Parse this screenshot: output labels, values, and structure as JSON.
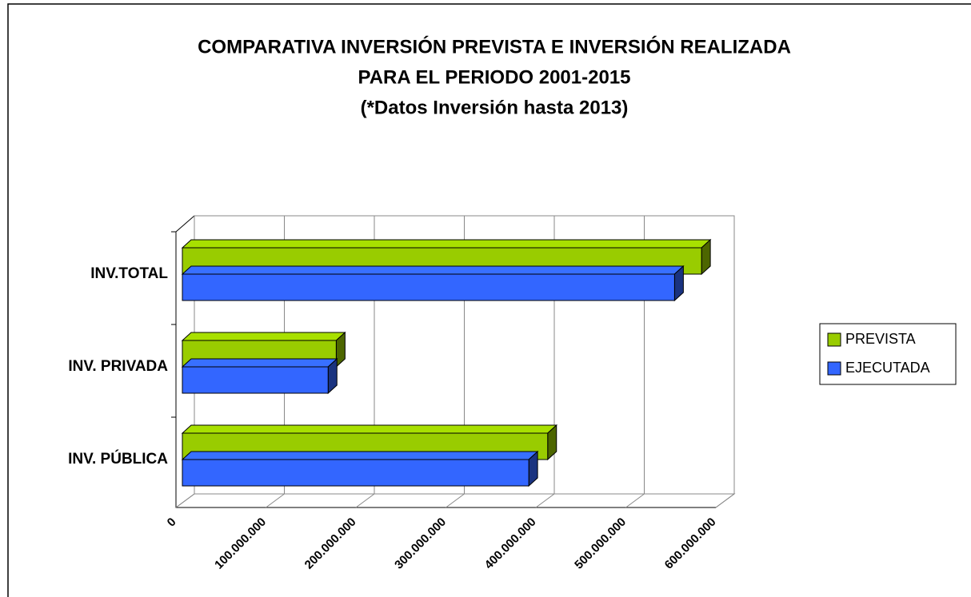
{
  "chart_data": {
    "type": "bar3d_horizontal",
    "title": [
      "COMPARATIVA INVERSIÓN PREVISTA E INVERSIÓN REALIZADA",
      "PARA EL PERIODO 2001-2015",
      "(*Datos Inversión hasta 2013)"
    ],
    "categories": [
      "INV. PÚBLICA",
      "INV. PRIVADA",
      "INV.TOTAL"
    ],
    "series": [
      {
        "name": "PREVISTA",
        "color": "#99cc00",
        "values": [
          406000000,
          171000000,
          577000000
        ]
      },
      {
        "name": "EJECUTADA",
        "color": "#3366ff",
        "values": [
          385000000,
          162000000,
          547000000
        ]
      }
    ],
    "xlim": [
      0,
      600000000
    ],
    "xticks": [
      0,
      {
        "value": 100000000,
        "label": "100.000.000"
      },
      {
        "value": 200000000,
        "label": "200.000.000"
      },
      {
        "value": 300000000,
        "label": "300.000.000"
      },
      {
        "value": 400000000,
        "label": "400.000.000"
      },
      {
        "value": 500000000,
        "label": "500.000.000"
      },
      {
        "value": 600000000,
        "label": "600.000.000"
      }
    ],
    "grid": true,
    "legend": "right"
  }
}
